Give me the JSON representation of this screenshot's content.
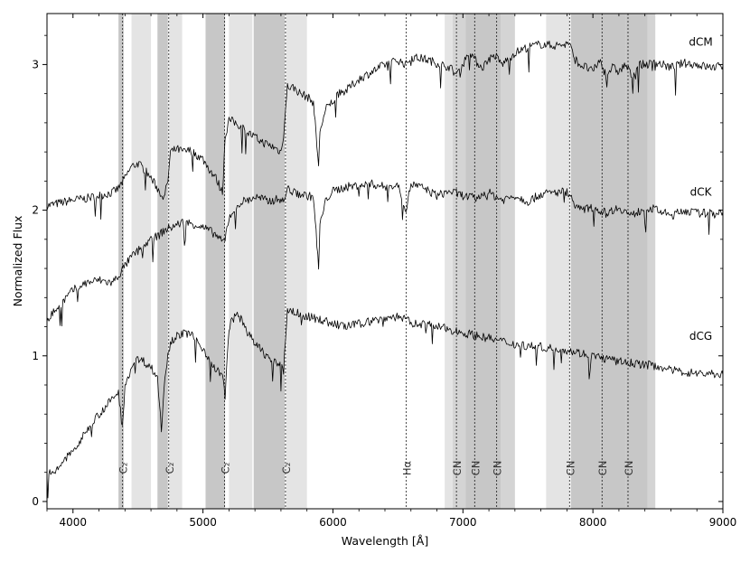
{
  "chart_data": {
    "type": "line",
    "title": "",
    "xlabel": "Wavelength [Å]",
    "ylabel": "Normalized Flux",
    "xlim": [
      3800,
      9000
    ],
    "ylim": [
      -0.05,
      3.35
    ],
    "x_ticks": [
      4000,
      5000,
      6000,
      7000,
      8000,
      9000
    ],
    "y_ticks": [
      0,
      1,
      2,
      3
    ],
    "grid": false,
    "legend": "none",
    "series": [
      {
        "name": "dCM",
        "color": "#000000",
        "label_at": [
          8830,
          3.13
        ],
        "x": [
          3800,
          3900,
          4000,
          4100,
          4200,
          4300,
          4350,
          4400,
          4450,
          4500,
          4550,
          4600,
          4650,
          4700,
          4730,
          4750,
          4800,
          4850,
          4900,
          4950,
          5000,
          5050,
          5100,
          5150,
          5170,
          5200,
          5250,
          5300,
          5350,
          5400,
          5450,
          5500,
          5550,
          5600,
          5620,
          5650,
          5700,
          5750,
          5800,
          5850,
          5890,
          5900,
          5950,
          6000,
          6050,
          6100,
          6150,
          6200,
          6300,
          6400,
          6500,
          6563,
          6600,
          6700,
          6800,
          6900,
          6950,
          7000,
          7050,
          7100,
          7150,
          7200,
          7250,
          7300,
          7400,
          7500,
          7600,
          7700,
          7800,
          7820,
          7850,
          7900,
          7950,
          8000,
          8050,
          8100,
          8150,
          8200,
          8250,
          8300,
          8350,
          8400,
          8500,
          8600,
          8700,
          8800,
          8900,
          9000
        ],
        "y": [
          2.03,
          2.05,
          2.07,
          2.08,
          2.1,
          2.12,
          2.15,
          2.22,
          2.3,
          2.32,
          2.28,
          2.22,
          2.15,
          2.08,
          2.2,
          2.4,
          2.42,
          2.4,
          2.41,
          2.38,
          2.35,
          2.28,
          2.22,
          2.12,
          2.5,
          2.62,
          2.6,
          2.57,
          2.53,
          2.5,
          2.47,
          2.45,
          2.43,
          2.4,
          2.52,
          2.85,
          2.84,
          2.8,
          2.78,
          2.74,
          2.3,
          2.55,
          2.7,
          2.75,
          2.8,
          2.82,
          2.86,
          2.9,
          2.95,
          3.0,
          3.03,
          3.0,
          3.05,
          3.04,
          3.01,
          2.98,
          2.93,
          3.0,
          3.1,
          3.02,
          2.98,
          3.04,
          3.06,
          3.0,
          3.08,
          3.12,
          3.14,
          3.13,
          3.14,
          3.15,
          3.05,
          3.0,
          2.98,
          2.95,
          3.03,
          2.93,
          2.98,
          2.95,
          3.0,
          2.92,
          3.0,
          3.0,
          3.01,
          2.98,
          3.01,
          3.0,
          2.98,
          2.99
        ]
      },
      {
        "name": "dCK",
        "color": "#000000",
        "label_at": [
          8830,
          2.1
        ],
        "x": [
          3800,
          3850,
          3900,
          4000,
          4100,
          4200,
          4300,
          4350,
          4400,
          4450,
          4500,
          4550,
          4600,
          4650,
          4700,
          4750,
          4800,
          4850,
          4900,
          4950,
          5000,
          5050,
          5100,
          5150,
          5170,
          5200,
          5250,
          5300,
          5350,
          5400,
          5450,
          5500,
          5550,
          5600,
          5620,
          5650,
          5700,
          5750,
          5800,
          5850,
          5890,
          5900,
          5950,
          6000,
          6100,
          6200,
          6300,
          6400,
          6500,
          6563,
          6600,
          6700,
          6800,
          6900,
          7000,
          7100,
          7200,
          7300,
          7400,
          7500,
          7600,
          7700,
          7800,
          7820,
          7850,
          7900,
          8000,
          8100,
          8200,
          8300,
          8400,
          8500,
          8600,
          8700,
          8800,
          8900,
          9000
        ],
        "y": [
          1.25,
          1.3,
          1.35,
          1.45,
          1.5,
          1.52,
          1.5,
          1.55,
          1.62,
          1.68,
          1.72,
          1.76,
          1.8,
          1.82,
          1.86,
          1.88,
          1.9,
          1.92,
          1.91,
          1.9,
          1.88,
          1.86,
          1.83,
          1.78,
          1.8,
          1.95,
          2.02,
          2.06,
          2.07,
          2.09,
          2.08,
          2.06,
          2.07,
          2.08,
          2.05,
          2.15,
          2.12,
          2.11,
          2.1,
          2.09,
          1.6,
          1.9,
          2.08,
          2.13,
          2.16,
          2.17,
          2.18,
          2.16,
          2.17,
          2.0,
          2.18,
          2.15,
          2.1,
          2.13,
          2.1,
          2.08,
          2.12,
          2.07,
          2.1,
          2.06,
          2.11,
          2.12,
          2.13,
          2.1,
          2.06,
          2.0,
          2.02,
          1.98,
          2.02,
          1.96,
          2.02,
          2.0,
          1.96,
          2.0,
          1.98,
          1.98,
          1.99
        ]
      },
      {
        "name": "dCG",
        "color": "#000000",
        "label_at": [
          8830,
          1.11
        ],
        "x": [
          3800,
          3850,
          3900,
          3950,
          4000,
          4050,
          4100,
          4150,
          4200,
          4250,
          4300,
          4350,
          4380,
          4400,
          4450,
          4500,
          4550,
          4600,
          4650,
          4680,
          4700,
          4730,
          4750,
          4800,
          4850,
          4900,
          4950,
          5000,
          5050,
          5100,
          5150,
          5170,
          5200,
          5250,
          5300,
          5350,
          5400,
          5450,
          5500,
          5550,
          5600,
          5620,
          5650,
          5700,
          5800,
          5900,
          6000,
          6100,
          6200,
          6300,
          6400,
          6500,
          6563,
          6600,
          6700,
          6800,
          6900,
          7000,
          7100,
          7200,
          7300,
          7400,
          7500,
          7600,
          7700,
          7800,
          7900,
          8000,
          8100,
          8200,
          8300,
          8400,
          8500,
          8600,
          8700,
          8800,
          8900,
          9000
        ],
        "y": [
          0.2,
          0.18,
          0.25,
          0.3,
          0.35,
          0.4,
          0.48,
          0.55,
          0.6,
          0.65,
          0.7,
          0.75,
          0.5,
          0.8,
          0.92,
          0.98,
          0.96,
          0.92,
          0.85,
          0.5,
          0.8,
          1.0,
          1.1,
          1.14,
          1.15,
          1.16,
          1.1,
          1.05,
          0.98,
          0.9,
          0.88,
          0.7,
          1.2,
          1.28,
          1.25,
          1.15,
          1.08,
          1.04,
          0.99,
          0.95,
          0.95,
          0.9,
          1.32,
          1.3,
          1.27,
          1.25,
          1.22,
          1.2,
          1.22,
          1.24,
          1.26,
          1.27,
          1.25,
          1.22,
          1.22,
          1.2,
          1.18,
          1.16,
          1.14,
          1.12,
          1.1,
          1.08,
          1.07,
          1.06,
          1.05,
          1.04,
          1.02,
          1.0,
          0.98,
          0.96,
          0.95,
          0.94,
          0.93,
          0.9,
          0.89,
          0.88,
          0.88,
          0.87
        ]
      }
    ],
    "shaded_bands": [
      {
        "from": 4350,
        "to": 4390,
        "shade": "dark"
      },
      {
        "from": 4450,
        "to": 4600,
        "shade": "light"
      },
      {
        "from": 4650,
        "to": 4730,
        "shade": "dark"
      },
      {
        "from": 4740,
        "to": 4840,
        "shade": "light"
      },
      {
        "from": 5020,
        "to": 5170,
        "shade": "dark"
      },
      {
        "from": 5200,
        "to": 5380,
        "shade": "light"
      },
      {
        "from": 5390,
        "to": 5630,
        "shade": "dark"
      },
      {
        "from": 5640,
        "to": 5800,
        "shade": "light"
      },
      {
        "from": 6860,
        "to": 6920,
        "shade": "light"
      },
      {
        "from": 6920,
        "to": 7020,
        "shade": "mid"
      },
      {
        "from": 7020,
        "to": 7290,
        "shade": "dark"
      },
      {
        "from": 7290,
        "to": 7400,
        "shade": "mid"
      },
      {
        "from": 7640,
        "to": 7820,
        "shade": "light"
      },
      {
        "from": 7830,
        "to": 8060,
        "shade": "dark"
      },
      {
        "from": 8060,
        "to": 8250,
        "shade": "dark"
      },
      {
        "from": 8250,
        "to": 8420,
        "shade": "dark"
      },
      {
        "from": 8420,
        "to": 8480,
        "shade": "mid"
      }
    ],
    "line_markers": [
      {
        "x": 4382,
        "label": "C₂"
      },
      {
        "x": 4737,
        "label": "C₂"
      },
      {
        "x": 5165,
        "label": "C₂"
      },
      {
        "x": 5635,
        "label": "C₂"
      },
      {
        "x": 6563,
        "label": "Hα"
      },
      {
        "x": 6950,
        "label": "CN"
      },
      {
        "x": 7090,
        "label": "CN"
      },
      {
        "x": 7260,
        "label": "CN"
      },
      {
        "x": 7820,
        "label": "CN"
      },
      {
        "x": 8070,
        "label": "CN"
      },
      {
        "x": 8270,
        "label": "CN"
      }
    ],
    "colors": {
      "band_light": "#e4e4e4",
      "band_mid": "#d4d4d4",
      "band_dark": "#c7c7c7",
      "line": "#000000"
    }
  }
}
